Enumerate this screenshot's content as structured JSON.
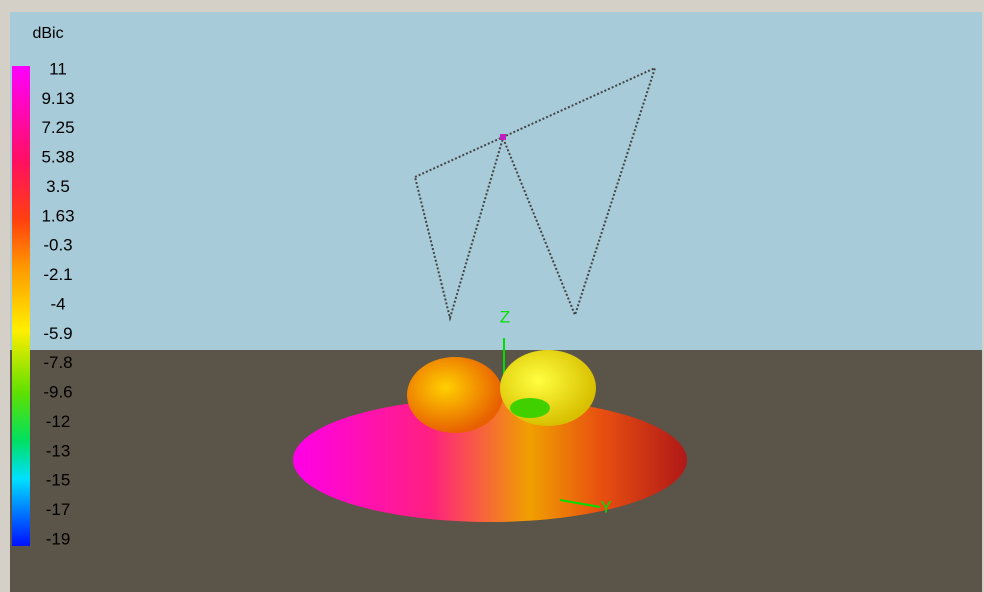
{
  "legend": {
    "title": "dBic",
    "labels": [
      "11",
      "9.13",
      "7.25",
      "5.38",
      "3.5",
      "1.63",
      "-0.3",
      "-2.1",
      "-4",
      "-5.9",
      "-7.8",
      "-9.6",
      "-12",
      "-13",
      "-15",
      "-17",
      "-19"
    ]
  },
  "axes": {
    "z": "Z",
    "y": "Y"
  }
}
